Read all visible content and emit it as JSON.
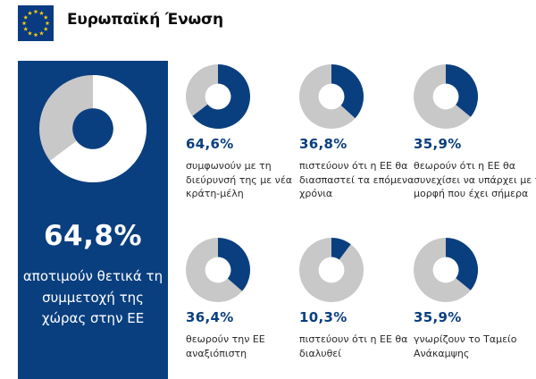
{
  "header": {
    "title": "Ευρωπαϊκή Ένωση",
    "flag_icon": "eu-flag-icon"
  },
  "colors": {
    "primary": "#0a3f7f",
    "secondary": "#c8c8c8",
    "panel_hole": "#0a3f7f",
    "cell_hole": "#ffffff"
  },
  "chart_data": [
    {
      "type": "pie",
      "value": 64.8,
      "label": "64,8%",
      "description": "αποτιμούν θετικά τη συμμετοχή της χώρας στην ΕΕ"
    },
    {
      "type": "pie",
      "value": 64.6,
      "label": "64,6%",
      "description": "συμφωνούν με τη διεύρυνσή της με νέα κράτη-μέλη"
    },
    {
      "type": "pie",
      "value": 36.8,
      "label": "36,8%",
      "description": "πιστεύουν ότι η ΕΕ θα διασπαστεί τα επόμενα χρόνια"
    },
    {
      "type": "pie",
      "value": 35.9,
      "label": "35,9%",
      "description": "θεωρούν ότι η ΕΕ θα συνεχίσει να υπάρχει με τη μορφή που έχει σήμερα"
    },
    {
      "type": "pie",
      "value": 36.4,
      "label": "36,4%",
      "description": "θεωρούν την ΕΕ αναξιόπιστη"
    },
    {
      "type": "pie",
      "value": 10.3,
      "label": "10,3%",
      "description": "πιστεύουν ότι η ΕΕ θα διαλυθεί"
    },
    {
      "type": "pie",
      "value": 35.9,
      "label": "35,9%",
      "description": "γνωρίζουν το Ταμείο Ανάκαμψης"
    }
  ]
}
